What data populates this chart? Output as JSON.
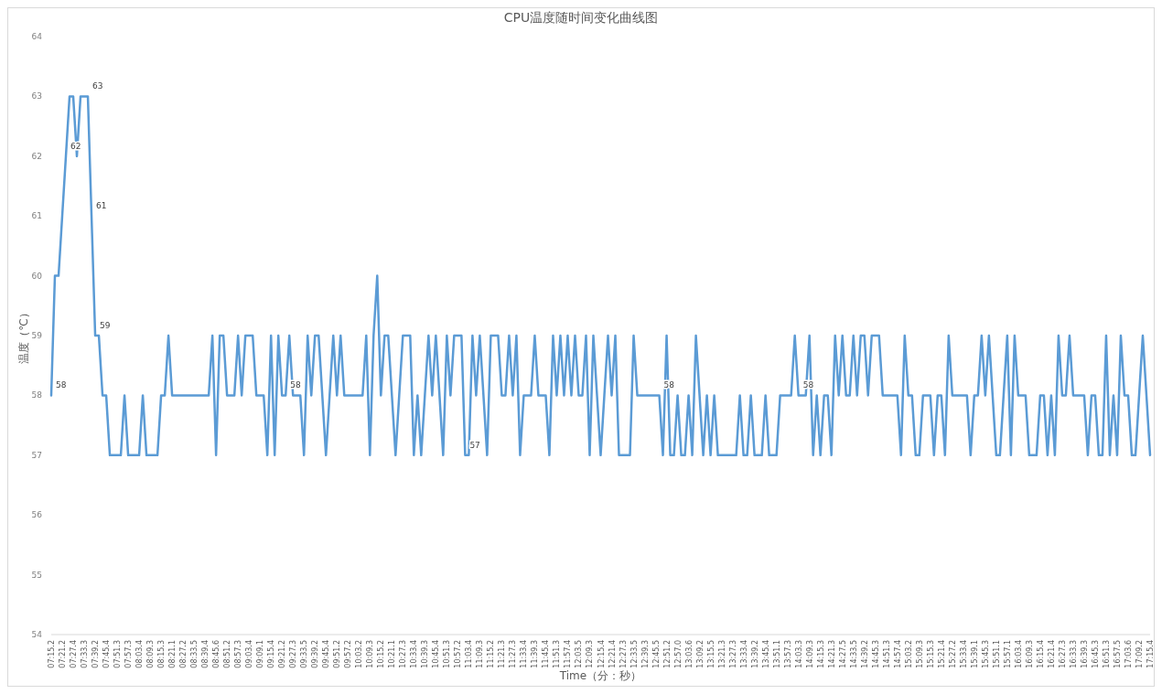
{
  "chart_data": {
    "type": "line",
    "title": "CPU温度随时间变化曲线图",
    "xlabel": "Time（分：秒）",
    "ylabel": "温度（℃）",
    "categories": [
      "07:15.2",
      null,
      null,
      "07:21.2",
      null,
      null,
      "07:27.4",
      null,
      null,
      "07:33.3",
      null,
      null,
      "07:39.2",
      null,
      null,
      "07:45.4",
      null,
      null,
      "07:51.3",
      null,
      null,
      "07:57.3",
      null,
      null,
      "08:03.4",
      null,
      null,
      "08:09.3",
      null,
      null,
      "08:15.3",
      null,
      null,
      "08:21.1",
      null,
      null,
      "08:27.2",
      null,
      null,
      "08:33.5",
      null,
      null,
      "08:39.4",
      null,
      null,
      "08:45.6",
      null,
      null,
      "08:51.2",
      null,
      null,
      "08:57.3",
      null,
      null,
      "09:03.4",
      null,
      null,
      "09:09.1",
      null,
      null,
      "09:15.4",
      null,
      null,
      "09:21.2",
      null,
      null,
      "09:27.3",
      null,
      null,
      "09:33.5",
      null,
      null,
      "09:39.2",
      null,
      null,
      "09:45.4",
      null,
      null,
      "09:51.2",
      null,
      null,
      "09:57.2",
      null,
      null,
      "10:03.2",
      null,
      null,
      "10:09.3",
      null,
      null,
      "10:15.2",
      null,
      null,
      "10:21.1",
      null,
      null,
      "10:27.3",
      null,
      null,
      "10:33.4",
      null,
      null,
      "10:39.3",
      null,
      null,
      "10:45.4",
      null,
      null,
      "10:51.3",
      null,
      null,
      "10:57.2",
      null,
      null,
      "11:03.4",
      null,
      null,
      "11:09.3",
      null,
      null,
      "11:15.2",
      null,
      null,
      "11:21.3",
      null,
      null,
      "11:27.3",
      null,
      null,
      "11:33.4",
      null,
      null,
      "11:39.3",
      null,
      null,
      "11:45.4",
      null,
      null,
      "11:51.3",
      null,
      null,
      "11:57.4",
      null,
      null,
      "12:03.5",
      null,
      null,
      "12:09.3",
      null,
      null,
      "12:15.4",
      null,
      null,
      "12:21.4",
      null,
      null,
      "12:27.3",
      null,
      null,
      "12:33.5",
      null,
      null,
      "12:39.3",
      null,
      null,
      "12:45.5",
      null,
      null,
      "12:51.2",
      null,
      null,
      "12:57.0",
      null,
      null,
      "13:03.6",
      null,
      null,
      "13:09.2",
      null,
      null,
      "13:15.5",
      null,
      null,
      "13:21.3",
      null,
      null,
      "13:27.3",
      null,
      null,
      "13:33.4",
      null,
      null,
      "13:39.2",
      null,
      null,
      "13:45.4",
      null,
      null,
      "13:51.1",
      null,
      null,
      "13:57.3",
      null,
      null,
      "14:03.3",
      null,
      null,
      "14:09.3",
      null,
      null,
      "14:15.3",
      null,
      null,
      "14:21.3",
      null,
      null,
      "14:27.5",
      null,
      null,
      "14:33.5",
      null,
      null,
      "14:39.2",
      null,
      null,
      "14:45.3",
      null,
      null,
      "14:51.3",
      null,
      null,
      "14:57.4",
      null,
      null,
      "15:03.2",
      null,
      null,
      "15:09.3",
      null,
      null,
      "15:15.3",
      null,
      null,
      "15:21.4",
      null,
      null,
      "15:27.2",
      null,
      null,
      "15:33.4",
      null,
      null,
      "15:39.1",
      null,
      null,
      "15:45.3",
      null,
      null,
      "15:51.1",
      null,
      null,
      "15:57.1",
      null,
      null,
      "16:03.4",
      null,
      null,
      "16:09.3",
      null,
      null,
      "16:15.4",
      null,
      null,
      "16:21.4",
      null,
      null,
      "16:27.3",
      null,
      null,
      "16:33.3",
      null,
      null,
      "16:39.3",
      null,
      null,
      "16:45.3",
      null,
      null,
      "16:51.3",
      null,
      null,
      "16:57.5",
      null,
      null,
      "17:03.6",
      null,
      null,
      "17:09.2",
      null,
      null,
      "17:15.4"
    ],
    "series": [
      {
        "color": "#5b9bd5",
        "values": [
          58,
          60,
          60,
          61,
          62,
          63,
          63,
          62,
          63,
          63,
          63,
          61,
          59,
          59,
          58,
          58,
          57,
          57,
          57,
          57,
          58,
          57,
          57,
          57,
          57,
          58,
          57,
          57,
          57,
          57,
          58,
          58,
          59,
          58,
          58,
          58,
          58,
          58,
          58,
          58,
          58,
          58,
          58,
          58,
          59,
          57,
          59,
          59,
          58,
          58,
          58,
          59,
          58,
          59,
          59,
          59,
          58,
          58,
          58,
          57,
          59,
          57,
          59,
          58,
          58,
          59,
          58,
          58,
          58,
          57,
          59,
          58,
          59,
          59,
          58,
          57,
          58,
          59,
          58,
          59,
          58,
          58,
          58,
          58,
          58,
          58,
          59,
          57,
          59,
          60,
          58,
          59,
          59,
          58,
          57,
          58,
          59,
          59,
          59,
          57,
          58,
          57,
          58,
          59,
          58,
          59,
          58,
          57,
          59,
          58,
          59,
          59,
          59,
          57,
          57,
          59,
          58,
          59,
          58,
          57,
          59,
          59,
          59,
          58,
          58,
          59,
          58,
          59,
          57,
          58,
          58,
          58,
          59,
          58,
          58,
          58,
          57,
          59,
          58,
          59,
          58,
          59,
          58,
          59,
          58,
          58,
          59,
          57,
          59,
          58,
          57,
          58,
          59,
          58,
          59,
          57,
          57,
          57,
          57,
          59,
          58,
          58,
          58,
          58,
          58,
          58,
          58,
          57,
          59,
          57,
          57,
          58,
          57,
          57,
          58,
          57,
          59,
          58,
          57,
          58,
          57,
          58,
          57,
          57,
          57,
          57,
          57,
          57,
          58,
          57,
          57,
          58,
          57,
          57,
          57,
          58,
          57,
          57,
          57,
          58,
          58,
          58,
          58,
          59,
          58,
          58,
          58,
          59,
          57,
          58,
          57,
          58,
          58,
          57,
          59,
          58,
          59,
          58,
          58,
          59,
          58,
          59,
          59,
          58,
          59,
          59,
          59,
          58,
          58,
          58,
          58,
          58,
          57,
          59,
          58,
          58,
          57,
          57,
          58,
          58,
          58,
          57,
          58,
          58,
          57,
          59,
          58,
          58,
          58,
          58,
          58,
          57,
          58,
          58,
          59,
          58,
          59,
          58,
          57,
          57,
          58,
          59,
          57,
          59,
          58,
          58,
          58,
          57,
          57,
          57,
          58,
          58,
          57,
          58,
          57,
          59,
          58,
          58,
          59,
          58,
          58,
          58,
          58,
          57,
          58,
          58,
          57,
          57,
          59,
          57,
          58,
          57,
          59,
          58,
          58,
          57,
          57,
          58,
          59,
          58,
          57
        ],
        "value_labels": [
          "58",
          null,
          null,
          null,
          "62",
          null,
          null,
          null,
          null,
          null,
          "63",
          "61",
          "59",
          null,
          null,
          null,
          null,
          null,
          null,
          null,
          null,
          null,
          null,
          null,
          null,
          null,
          null,
          null,
          null,
          null,
          null,
          null,
          null,
          null,
          null,
          null,
          null,
          null,
          null,
          null,
          null,
          null,
          null,
          null,
          null,
          null,
          null,
          null,
          null,
          null,
          null,
          null,
          null,
          null,
          null,
          null,
          null,
          null,
          null,
          null,
          null,
          null,
          null,
          null,
          "58",
          null,
          null,
          null,
          null,
          null,
          null,
          null,
          null,
          null,
          null,
          null,
          null,
          null,
          null,
          null,
          null,
          null,
          null,
          null,
          null,
          null,
          null,
          null,
          null,
          null,
          null,
          null,
          null,
          null,
          null,
          null,
          null,
          null,
          null,
          null,
          null,
          null,
          null,
          null,
          null,
          null,
          null,
          null,
          null,
          null,
          null,
          null,
          null,
          "57",
          null,
          null,
          null,
          null,
          null,
          null,
          null,
          null,
          null,
          null,
          null,
          null,
          null,
          null,
          null,
          null,
          null,
          null,
          null,
          null,
          null,
          null,
          null,
          null,
          null,
          null,
          null,
          null,
          null,
          null,
          null,
          null,
          null,
          null,
          null,
          null,
          null,
          null,
          null,
          null,
          null,
          null,
          null,
          null,
          null,
          null,
          null,
          null,
          null,
          null,
          null,
          null,
          "58",
          null,
          null,
          null,
          null,
          null,
          null,
          null,
          null,
          null,
          null,
          null,
          null,
          null,
          null,
          null,
          null,
          null,
          null,
          null,
          null,
          null,
          null,
          null,
          null,
          null,
          null,
          null,
          null,
          null,
          null,
          null,
          null,
          null,
          null,
          null,
          null,
          null,
          "58",
          null,
          null,
          null,
          null,
          null,
          null,
          null,
          null,
          null,
          null,
          null,
          null,
          null,
          null,
          null,
          null,
          null,
          null,
          null,
          null,
          null,
          null,
          null,
          null,
          null,
          null,
          null,
          null,
          null,
          null,
          null,
          null,
          null,
          null,
          null,
          null,
          null,
          null,
          null,
          null,
          null,
          null,
          null,
          null,
          null,
          null,
          null,
          null,
          null,
          null,
          null,
          null,
          null,
          null,
          null,
          null,
          null,
          null,
          null,
          null,
          null,
          null,
          null,
          null,
          null,
          null,
          null,
          null,
          null,
          null,
          null,
          null,
          null,
          null,
          null,
          null,
          null,
          null,
          null,
          null,
          null,
          null,
          null,
          null,
          null,
          null,
          null,
          null,
          null,
          null,
          null,
          null,
          null,
          null,
          null,
          null
        ]
      }
    ],
    "ylim": [
      54,
      64
    ],
    "yticks": [
      54,
      55,
      56,
      57,
      58,
      59,
      60,
      61,
      62,
      63,
      64
    ],
    "grid": false,
    "marker": "none",
    "line_style": "solid"
  }
}
